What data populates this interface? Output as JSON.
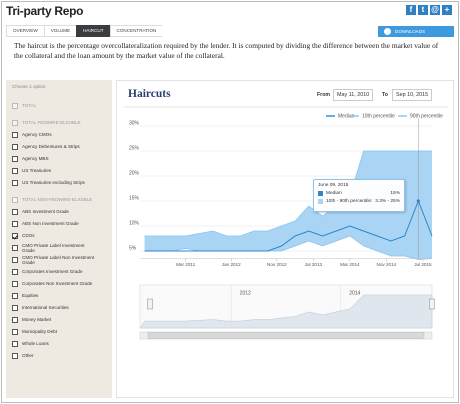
{
  "header": {
    "title": "Tri-party Repo",
    "share": [
      "f",
      "t",
      "@",
      "+"
    ]
  },
  "tabs": [
    "OVERVIEW",
    "VOLUME",
    "HAIRCUT",
    "CONCENTRATION"
  ],
  "active_tab": "HAIRCUT",
  "downloads": "DOWNLOADS",
  "description": "The haircut is the percentage overcollateralization required by the lender. It is computed by dividing the difference between the market value of the collateral and the loan amount by the market value of the collateral.",
  "sidebar": {
    "prompt": "Choose 1 option",
    "checked": "CDOs",
    "groups": [
      {
        "label": "TOTAL",
        "items": []
      },
      {
        "label": "TOTAL FEDWIRE-ELIGIBLE",
        "items": [
          "Agency CMOs",
          "Agency Debentures & Strips",
          "Agency MBS",
          "US Treasuries",
          "US Treasuries excluding Strips"
        ]
      },
      {
        "label": "TOTAL NON-FEDWIRE-ELIGIBLE",
        "items": [
          "ABS Investment Grade",
          "ABS Non Investment Grade",
          "CDOs",
          "CMO Private Label Investment Grade",
          "CMO Private Label Non Investment Grade",
          "Corporates Investment Grade",
          "Corporates Non Investment Grade",
          "Equities",
          "International Securities",
          "Money Market",
          "Municipality Debt",
          "Whole Loans",
          "Other"
        ]
      }
    ]
  },
  "chart": {
    "type": "area-range-line",
    "title": "Haircuts",
    "from_label": "From",
    "from": "May 11, 2010",
    "to_label": "To",
    "to": "Sep 10, 2015",
    "x": [
      "2010-06",
      "2010-09",
      "2010-12",
      "2011-03",
      "2011-06",
      "2011-09",
      "2011-12",
      "2012-03",
      "2012-06",
      "2012-09",
      "2012-12",
      "2013-03",
      "2013-06",
      "2013-09",
      "2013-12",
      "2014-03",
      "2014-06",
      "2014-09",
      "2014-12",
      "2015-03",
      "2015-06",
      "2015-09"
    ],
    "series": [
      {
        "name": "Median",
        "color": "#2f86c9",
        "values": [
          5,
          5,
          5,
          5,
          5,
          5,
          5,
          5,
          5,
          5,
          6,
          8,
          9,
          8,
          9,
          10,
          9,
          8,
          7,
          8,
          15,
          8
        ]
      },
      {
        "name": "10th percentile",
        "color": "#86c4ee",
        "values": [
          5,
          5,
          5,
          5.5,
          5,
          5,
          5,
          5,
          5,
          5,
          5,
          6,
          7,
          6,
          7,
          8,
          6,
          5,
          4,
          4,
          3.3,
          3.5
        ]
      },
      {
        "name": "90th percentile",
        "color": "#86c4ee",
        "values": [
          8,
          8,
          8,
          8,
          8.5,
          9,
          8,
          8,
          9,
          9,
          10,
          11,
          14,
          12,
          14,
          16,
          25,
          25,
          25,
          25,
          25,
          25
        ]
      }
    ],
    "band_color": "#a9d4f3",
    "xlim": [
      "2010-05",
      "2015-09"
    ],
    "xticks": [
      {
        "value": "2011-03",
        "label": "Mar 2011"
      },
      {
        "value": "2012-01",
        "label": "Jan 2012"
      },
      {
        "value": "2012-11",
        "label": "Nov 2012"
      },
      {
        "value": "2013-07",
        "label": "Jul 2013"
      },
      {
        "value": "2014-03",
        "label": "Mar 2014"
      },
      {
        "value": "2014-11",
        "label": "Nov 2014"
      },
      {
        "value": "2015-07",
        "label": "Jul 2015"
      }
    ],
    "ylim": [
      3.5,
      31.5
    ],
    "yticks": [
      {
        "value": 5,
        "label": "5%"
      },
      {
        "value": 10,
        "label": "10%"
      },
      {
        "value": 15,
        "label": "15%"
      },
      {
        "value": 20,
        "label": "20%"
      },
      {
        "value": 25,
        "label": "25%"
      },
      {
        "value": 30,
        "label": "30%"
      }
    ],
    "grid": true,
    "tooltip": {
      "x": "2015-06",
      "date": "June 09, 2015",
      "rows": [
        {
          "name": "Median",
          "value": "15%"
        },
        {
          "name": "10th - 90th percentile:",
          "value": "3.3% - 25%"
        }
      ]
    },
    "navigator": {
      "labels": [
        "2012",
        "2014"
      ]
    }
  }
}
